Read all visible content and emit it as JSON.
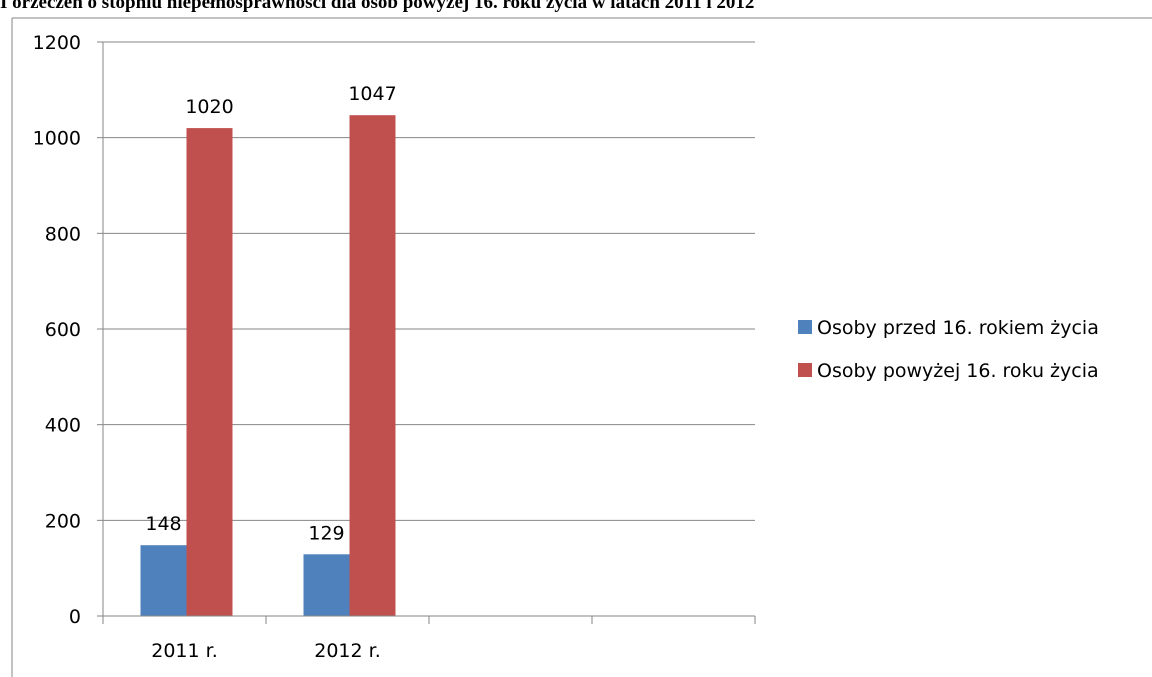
{
  "chart_data": {
    "type": "bar",
    "title": "I orzeczeń o stopniu niepełnosprawności dla osób powyżej 16. roku życia w latach 2011 i 2012",
    "categories": [
      "2011 r.",
      "2012 r.",
      "",
      ""
    ],
    "series": [
      {
        "name": "Osoby przed 16. rokiem życia",
        "values": [
          148,
          129,
          null,
          null
        ]
      },
      {
        "name": "Osoby powyżej 16. roku życia",
        "values": [
          1020,
          1047,
          null,
          null
        ]
      }
    ],
    "ylim": [
      0,
      1200
    ],
    "yticks": [
      "0",
      "200",
      "400",
      "600",
      "800",
      "1000",
      "1200"
    ],
    "grid": true,
    "legend_position": "right"
  },
  "colors": {
    "series": [
      "#4f81bd",
      "#c0504d"
    ],
    "grid": "#868686"
  }
}
